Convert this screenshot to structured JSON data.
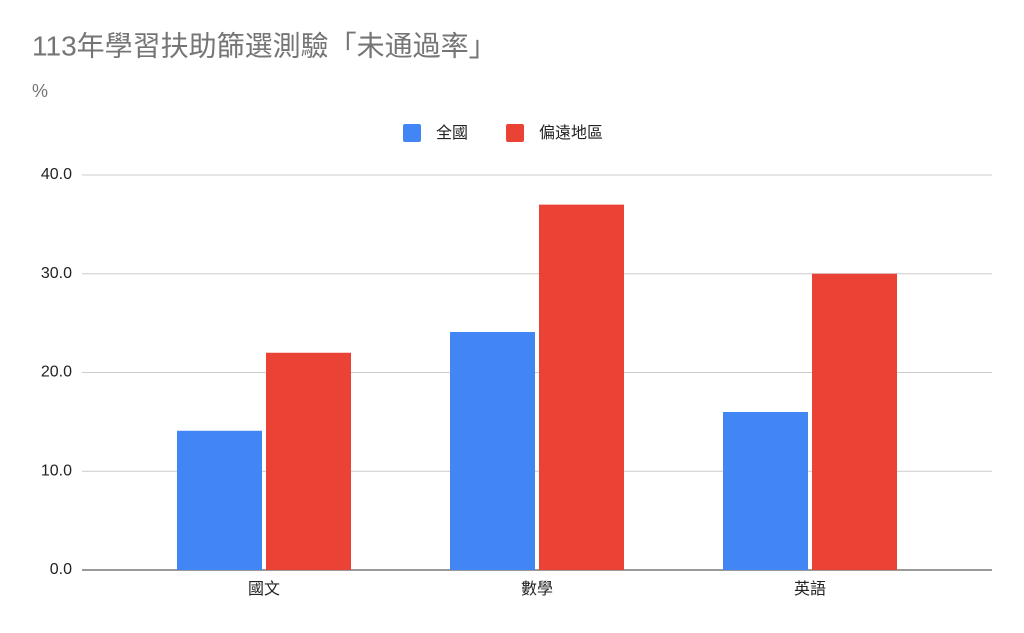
{
  "chart_data": {
    "type": "bar",
    "title": "113年學習扶助篩選測驗「未通過率」",
    "subtitle": "%",
    "categories": [
      "國文",
      "數學",
      "英語"
    ],
    "series": [
      {
        "name": "全國",
        "color": "#4285f4",
        "values": [
          14.1,
          24.1,
          16.0
        ]
      },
      {
        "name": "偏遠地區",
        "color": "#ea4335",
        "values": [
          22.0,
          37.0,
          30.0
        ]
      }
    ],
    "ylim": [
      0,
      40
    ],
    "yticks": [
      {
        "value": 0,
        "label": "0.0"
      },
      {
        "value": 10,
        "label": "10.0"
      },
      {
        "value": 20,
        "label": "20.0"
      },
      {
        "value": 30,
        "label": "30.0"
      },
      {
        "value": 40,
        "label": "40.0"
      }
    ],
    "grid": true,
    "legend": "top"
  }
}
